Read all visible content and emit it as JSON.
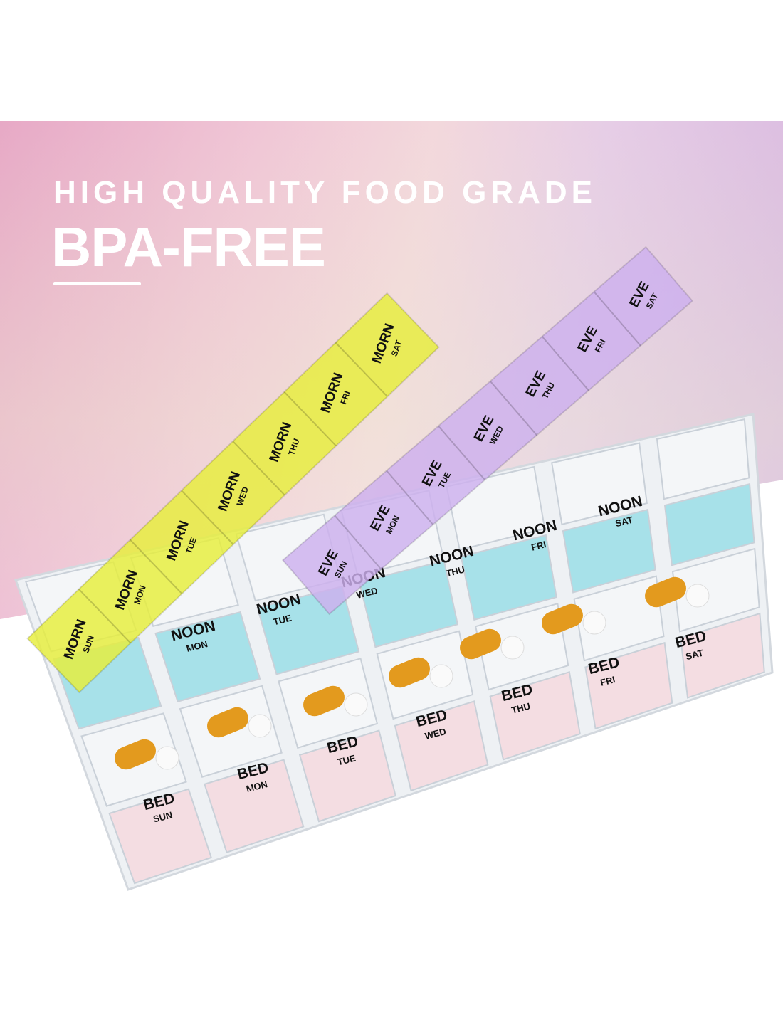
{
  "headline": {
    "line1": "HIGH QUALITY FOOD GRADE",
    "line2": "BPA-FREE"
  },
  "colors": {
    "morn_lid": "#e6ee3a",
    "noon_lid": "#8fdbe6",
    "eve_lid": "#cdb0ee",
    "bed_lid": "#f6d6dc",
    "tray": "#eef1f4",
    "capsule": "#e39a1e"
  },
  "organizer": {
    "days": [
      "SUN",
      "MON",
      "TUE",
      "WED",
      "THU",
      "FRI",
      "SAT"
    ],
    "morn": {
      "label": "MORN",
      "days": [
        "SUN",
        "MON",
        "TUE",
        "WED",
        "THU",
        "FRI",
        "SAT"
      ]
    },
    "noon": {
      "label": "NOON",
      "days": [
        "MON",
        "TUE",
        "WED",
        "THU",
        "FRI",
        "SAT"
      ]
    },
    "eve": {
      "label": "EVE",
      "days": [
        "MON",
        "TUE",
        "WED",
        "THU",
        "FRI",
        "SAT"
      ]
    },
    "bed": {
      "label": "BED",
      "days": [
        "SUN",
        "MON",
        "TUE",
        "WED",
        "THU",
        "FRI",
        "SAT"
      ]
    }
  }
}
